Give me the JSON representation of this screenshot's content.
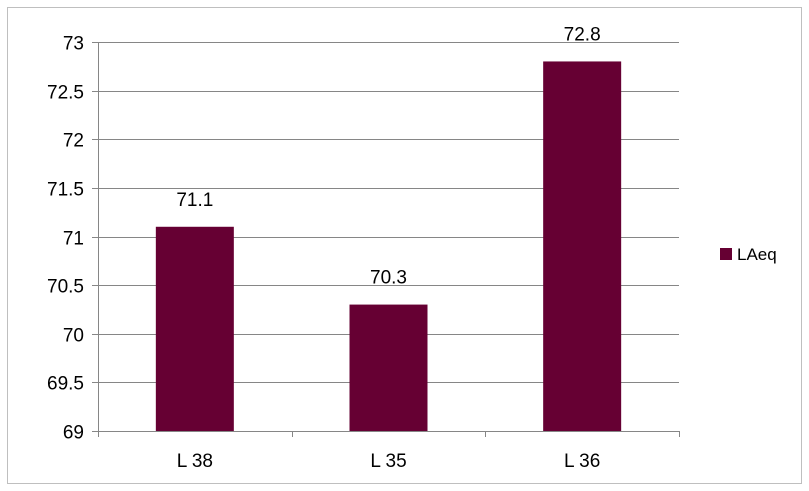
{
  "chart_data": {
    "type": "bar",
    "categories": [
      "L 38",
      "L 35",
      "L 36"
    ],
    "series": [
      {
        "name": "LAeq",
        "values": [
          71.1,
          70.3,
          72.8
        ],
        "color": "#660033"
      }
    ],
    "title": "",
    "xlabel": "",
    "ylabel": "",
    "ylim": [
      69,
      73
    ],
    "yticks": [
      "69",
      "69.5",
      "70",
      "70.5",
      "71",
      "71.5",
      "72",
      "72.5",
      "73"
    ],
    "data_labels": [
      "71.1",
      "70.3",
      "72.8"
    ],
    "grid": true,
    "legend_position": "right"
  }
}
